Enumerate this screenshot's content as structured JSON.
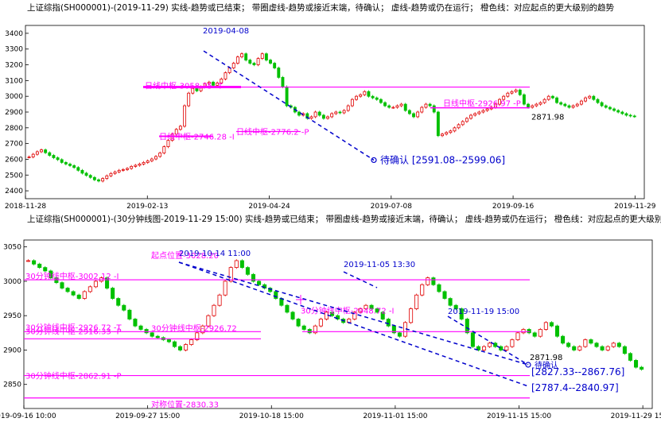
{
  "chart_data": [
    {
      "type": "candlestick",
      "title": "上证综指(SH000001)-(2019-11-29)  实线-趋势或已结束；  带圈虚线-趋势或接近末端，待确认；  虚线-趋势或仍在运行；  橙色线：对应起点的更大级别的趋势",
      "ylim": [
        2350,
        3450
      ],
      "yticks": [
        2400,
        2500,
        2600,
        2700,
        2800,
        2900,
        3000,
        3100,
        3200,
        3300,
        3400
      ],
      "xticks": [
        "2018-11-28",
        "2019-02-13",
        "2019-04-24",
        "2019-07-08",
        "2019-09-16",
        "2019-11-29"
      ],
      "close": [
        2615,
        2632,
        2648,
        2660,
        2642,
        2625,
        2610,
        2598,
        2580,
        2570,
        2560,
        2548,
        2530,
        2512,
        2498,
        2485,
        2470,
        2462,
        2478,
        2495,
        2510,
        2520,
        2530,
        2535,
        2542,
        2555,
        2562,
        2570,
        2580,
        2590,
        2602,
        2618,
        2640,
        2680,
        2720,
        2760,
        2790,
        2810,
        2940,
        3020,
        3050,
        3035,
        3060,
        3080,
        3090,
        3070,
        3085,
        3110,
        3150,
        3180,
        3210,
        3250,
        3270,
        3230,
        3210,
        3200,
        3240,
        3270,
        3230,
        3210,
        3180,
        3120,
        3060,
        2940,
        2930,
        2900,
        2880,
        2890,
        2860,
        2870,
        2900,
        2880,
        2860,
        2870,
        2890,
        2900,
        2895,
        2910,
        2940,
        2980,
        3000,
        3010,
        3030,
        3000,
        2990,
        2980,
        2960,
        2940,
        2930,
        2930,
        2940,
        2950,
        2910,
        2890,
        2870,
        2900,
        2930,
        2950,
        2940,
        2900,
        2750,
        2760,
        2770,
        2780,
        2800,
        2820,
        2840,
        2860,
        2880,
        2890,
        2900,
        2910,
        2920,
        2930,
        2950,
        2980,
        3000,
        3020,
        3030,
        3040,
        3010,
        2950,
        2930,
        2940,
        2950,
        2960,
        2980,
        3000,
        2990,
        2960,
        2950,
        2940,
        2930,
        2940,
        2950,
        2970,
        2990,
        3000,
        2980,
        2960,
        2940,
        2930,
        2920,
        2910,
        2900,
        2890,
        2880,
        2875,
        2871.98
      ],
      "series_segments": [
        {
          "label": "2019-04-08",
          "kind": "dashed",
          "from": {
            "date": "2019-04-08",
            "y": 3288
          },
          "to": {
            "date": "待确认",
            "y": 2595
          }
        }
      ],
      "pivot_lines": [
        {
          "label": "日线中枢-3058.75 -T",
          "y": 3058.75
        },
        {
          "label": "日线中枢-3058.75",
          "y": 3058.75
        },
        {
          "label": "日线中枢-2746.28 -I",
          "y": 2746.28
        },
        {
          "label": "日线中枢-2776.2 -P",
          "y": 2776.2
        },
        {
          "label": "日线中枢-2926.97 -P",
          "y": 2926.97
        }
      ],
      "annotations": [
        {
          "text": "2019-04-08"
        },
        {
          "text": "待确认 [2591.08--2599.06]"
        },
        {
          "text": "2871.98"
        }
      ]
    },
    {
      "type": "candlestick",
      "title": "上证综指(SH000001)-(30分钟线图-2019-11-29 15:00)  实线-趋势或已结束；  带圈虚线-趋势或接近末端，待确认；  虚线-趋势或仍在运行；  橙色线：对应起点的更大级别的趋势",
      "ylim": [
        2815,
        3060
      ],
      "yticks": [
        2850,
        2900,
        2950,
        3000,
        3050
      ],
      "xticks": [
        "2019-09-16 10:00",
        "2019-09-27 15:00",
        "2019-10-18 15:00",
        "2019-11-01 15:00",
        "2019-11-15 15:00",
        "2019-11-29 15:00"
      ],
      "close": [
        3030,
        3025,
        3020,
        3015,
        3005,
        2998,
        2990,
        2985,
        2980,
        2975,
        2985,
        2992,
        3000,
        3005,
        2990,
        2975,
        2965,
        2958,
        2945,
        2935,
        2930,
        2925,
        2920,
        2918,
        2915,
        2912,
        2905,
        2900,
        2908,
        2915,
        2925,
        2935,
        2950,
        2965,
        2980,
        3000,
        3020,
        3030,
        3020,
        3010,
        3000,
        2995,
        2990,
        2985,
        2975,
        2965,
        2955,
        2945,
        2935,
        2930,
        2925,
        2935,
        2945,
        2955,
        2950,
        2945,
        2940,
        2945,
        2955,
        2960,
        2965,
        2960,
        2955,
        2945,
        2935,
        2925,
        2920,
        2940,
        2960,
        2980,
        2995,
        3005,
        2995,
        2985,
        2975,
        2965,
        2960,
        2945,
        2925,
        2905,
        2900,
        2905,
        2910,
        2905,
        2900,
        2905,
        2915,
        2925,
        2930,
        2925,
        2920,
        2930,
        2940,
        2935,
        2920,
        2910,
        2905,
        2900,
        2905,
        2915,
        2910,
        2905,
        2900,
        2905,
        2910,
        2905,
        2895,
        2885,
        2875,
        2871.98
      ],
      "trend_lines": [
        {
          "label": "2019-10-14 11:00",
          "kind": "dashed"
        },
        {
          "label": "2019-11-05 13:30",
          "kind": "dashed"
        },
        {
          "label": "2019-11-19 15:00",
          "kind": "dashed"
        }
      ],
      "pivot_lines": [
        {
          "label": "30分钟线中枢-3002.12 -I",
          "y": 3002.12
        },
        {
          "label": "30分钟线中枢-2926.72 -T",
          "y": 2926.72
        },
        {
          "label": "30分钟线中枢-2916.33 -P",
          "y": 2916.33
        },
        {
          "label": "30分钟线中枢-2862.91 -P",
          "y": 2862.91
        },
        {
          "label": "30分钟线中枢-2926.72",
          "y": 2926.72
        },
        {
          "label": "30分钟线中枢-2948.72 -I",
          "y": 2948.72
        }
      ],
      "reference_lines": [
        {
          "label": "对称位置-2830.33",
          "y": 2830.33
        },
        {
          "label": "起点位置-3028.20",
          "y": 3028.2
        }
      ],
      "annotations": [
        {
          "text": "2871.98"
        },
        {
          "text": "待确认"
        },
        {
          "text": "[2827.33--2867.76]"
        },
        {
          "text": "[2787.4--2840.97]"
        }
      ]
    }
  ]
}
